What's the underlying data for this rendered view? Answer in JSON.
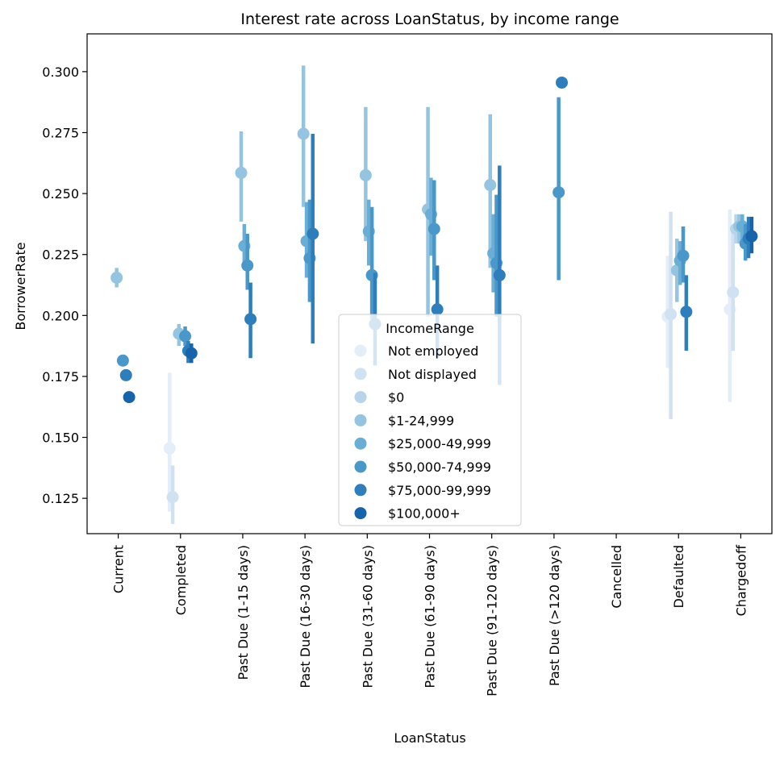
{
  "chart_data": {
    "type": "pointplot",
    "title": "Interest rate across LoanStatus, by income range",
    "xlabel": "LoanStatus",
    "ylabel": "BorrowerRate",
    "ylim": [
      0.1105,
      0.3155
    ],
    "yticks": [
      0.125,
      0.15,
      0.175,
      0.2,
      0.225,
      0.25,
      0.275,
      0.3
    ],
    "ytick_labels": [
      "0.125",
      "0.150",
      "0.175",
      "0.200",
      "0.225",
      "0.250",
      "0.275",
      "0.300"
    ],
    "categories": [
      "Current",
      "Completed",
      "Past Due (1-15 days)",
      "Past Due (16-30 days)",
      "Past Due (31-60 days)",
      "Past Due (61-90 days)",
      "Past Due (91-120 days)",
      "Past Due (>120 days)",
      "Cancelled",
      "Defaulted",
      "Chargedoff"
    ],
    "grid": false,
    "legend": {
      "title": "IncomeRange",
      "placement": "lower-center",
      "entries": [
        "Not employed",
        "Not displayed",
        "$0",
        "$1-24,999",
        "$25,000-49,999",
        "$50,000-74,999",
        "$75,000-99,999",
        "$100,000+"
      ]
    },
    "series": [
      {
        "name": "Not employed",
        "color": "#e3eef9",
        "values": [
          null,
          0.1455,
          null,
          null,
          null,
          null,
          null,
          null,
          null,
          0.1995,
          0.2025
        ],
        "ci_low": [
          null,
          0.1195,
          null,
          null,
          null,
          null,
          null,
          null,
          null,
          0.1785,
          0.1645
        ],
        "ci_high": [
          null,
          0.1765,
          null,
          null,
          null,
          null,
          null,
          null,
          null,
          0.2245,
          0.2435
        ]
      },
      {
        "name": "Not displayed",
        "color": "#d0e1f2",
        "values": [
          null,
          0.1255,
          null,
          null,
          null,
          null,
          null,
          null,
          null,
          0.2005,
          0.2095
        ],
        "ci_low": [
          null,
          0.1145,
          null,
          null,
          null,
          null,
          null,
          null,
          null,
          0.1575,
          0.1855
        ],
        "ci_high": [
          null,
          0.1385,
          null,
          null,
          null,
          null,
          null,
          null,
          null,
          0.2425,
          0.2365
        ]
      },
      {
        "name": "$0",
        "color": "#b7d4ea",
        "values": [
          null,
          null,
          null,
          null,
          null,
          null,
          null,
          null,
          null,
          null,
          0.2355
        ],
        "ci_low": [
          null,
          null,
          null,
          null,
          null,
          null,
          null,
          null,
          null,
          null,
          0.2295
        ],
        "ci_high": [
          null,
          null,
          null,
          null,
          null,
          null,
          null,
          null,
          null,
          null,
          0.2415
        ]
      },
      {
        "name": "$1-24,999",
        "color": "#94c4df",
        "values": [
          0.2155,
          0.1925,
          0.2585,
          0.2745,
          0.2575,
          0.2435,
          0.2535,
          null,
          null,
          0.2185,
          0.2365
        ],
        "ci_low": [
          0.2115,
          0.1875,
          0.2385,
          0.2445,
          0.2305,
          0.1995,
          0.2195,
          null,
          null,
          0.2055,
          0.2295
        ],
        "ci_high": [
          0.2195,
          0.1965,
          0.2755,
          0.3025,
          0.2855,
          0.2855,
          0.2825,
          null,
          null,
          0.2315,
          0.2415
        ]
      },
      {
        "name": "$25,000-49,999",
        "color": "#6aaed6",
        "values": [
          null,
          null,
          0.2285,
          0.2305,
          0.2345,
          0.2415,
          0.2255,
          null,
          null,
          0.2225,
          0.2365
        ],
        "ci_low": [
          null,
          null,
          0.2215,
          0.2155,
          0.2205,
          0.2245,
          0.2095,
          null,
          null,
          0.2125,
          0.2305
        ],
        "ci_high": [
          null,
          null,
          0.2375,
          0.2465,
          0.2475,
          0.2565,
          0.2415,
          null,
          null,
          0.2305,
          0.2415
        ]
      },
      {
        "name": "$50,000-74,999",
        "color": "#4a98c9",
        "values": [
          0.1815,
          0.1915,
          0.2205,
          0.2235,
          0.2165,
          0.2355,
          0.2215,
          0.2505,
          null,
          0.2245,
          0.2295
        ],
        "ci_low": [
          null,
          0.1875,
          0.2105,
          0.2055,
          0.1985,
          0.2145,
          0.1995,
          0.2145,
          null,
          0.2135,
          0.2225
        ],
        "ci_high": [
          null,
          0.1955,
          0.2335,
          0.2475,
          0.2445,
          0.2555,
          0.2495,
          0.2895,
          null,
          0.2365,
          0.2375
        ]
      },
      {
        "name": "$75,000-99,999",
        "color": "#2e7ebc",
        "values": [
          0.1755,
          0.1855,
          0.1985,
          0.2335,
          0.1965,
          0.2025,
          0.2165,
          0.2955,
          null,
          0.2015,
          0.2315
        ],
        "ci_low": [
          null,
          0.1805,
          0.1825,
          0.1885,
          0.1795,
          0.1825,
          0.1715,
          null,
          null,
          0.1855,
          0.2235
        ],
        "ci_high": [
          null,
          0.1895,
          0.2135,
          0.2745,
          0.2175,
          0.2205,
          0.2615,
          null,
          null,
          0.2165,
          0.2405
        ]
      },
      {
        "name": "$100,000+",
        "color": "#1764ab",
        "values": [
          0.1665,
          0.1845,
          null,
          null,
          null,
          null,
          null,
          null,
          null,
          null,
          0.2325
        ],
        "ci_low": [
          null,
          0.1805,
          null,
          null,
          null,
          null,
          null,
          null,
          null,
          null,
          0.2255
        ],
        "ci_high": [
          null,
          0.1885,
          null,
          null,
          null,
          null,
          null,
          null,
          null,
          null,
          0.2405
        ]
      }
    ]
  }
}
